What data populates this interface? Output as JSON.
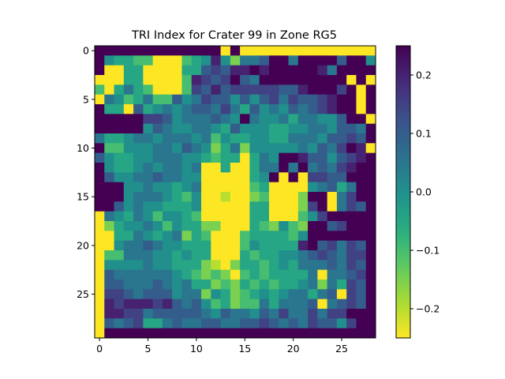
{
  "chart_data": {
    "type": "heatmap",
    "title": "TRI Index for Crater 99 in Zone RG5",
    "xlabel": "",
    "ylabel": "",
    "rows": 30,
    "cols": 29,
    "x_ticks": [
      0,
      5,
      10,
      15,
      20,
      25
    ],
    "y_ticks": [
      0,
      5,
      10,
      15,
      20,
      25
    ],
    "colorbar": {
      "colormap": "viridis",
      "reversed": true,
      "vmin": -0.25,
      "vmax": 0.25,
      "ticks": [
        0.2,
        0.1,
        0.0,
        -0.1,
        -0.2
      ],
      "tick_labels": [
        "0.2",
        "0.1",
        "0.0",
        "−0.1",
        "−0.2"
      ]
    },
    "values": [
      [
        0.25,
        0.25,
        0.25,
        0.25,
        0.25,
        0.25,
        0.25,
        0.25,
        0.25,
        0.25,
        0.25,
        0.25,
        0.25,
        -0.25,
        0.25,
        -0.25,
        -0.25,
        -0.25,
        -0.25,
        -0.25,
        -0.25,
        -0.25,
        -0.25,
        -0.25,
        -0.25,
        -0.25,
        -0.25,
        -0.25,
        -0.25
      ],
      [
        0.25,
        0.0,
        -0.05,
        -0.05,
        -0.1,
        -0.1,
        -0.25,
        -0.25,
        -0.25,
        -0.1,
        -0.05,
        0.0,
        0.2,
        0.0,
        -0.15,
        0.05,
        0.05,
        0.1,
        0.25,
        0.25,
        0.05,
        0.25,
        0.25,
        0.25,
        0.25,
        0.1,
        0.25,
        0.25,
        0.0
      ],
      [
        0.25,
        -0.25,
        -0.25,
        -0.05,
        -0.05,
        -0.25,
        -0.25,
        -0.25,
        -0.25,
        -0.05,
        -0.05,
        0.1,
        0.15,
        0.1,
        0.2,
        0.2,
        0.25,
        0.2,
        0.25,
        0.25,
        0.25,
        0.25,
        0.25,
        0.2,
        0.05,
        0.25,
        0.25,
        0.25,
        0.25
      ],
      [
        -0.25,
        -0.25,
        -0.25,
        -0.05,
        -0.05,
        -0.25,
        -0.25,
        -0.25,
        -0.25,
        -0.1,
        0.2,
        0.15,
        0.1,
        0.15,
        0.25,
        0.1,
        0.05,
        0.25,
        0.25,
        0.25,
        0.25,
        0.25,
        0.25,
        0.25,
        0.25,
        0.25,
        -0.25,
        0.25,
        -0.25
      ],
      [
        -0.1,
        -0.25,
        -0.05,
        0.05,
        -0.05,
        -0.1,
        -0.25,
        -0.25,
        -0.25,
        -0.1,
        0.15,
        0.1,
        0.2,
        0.1,
        0.15,
        0.15,
        0.15,
        0.15,
        0.15,
        0.1,
        0.1,
        0.2,
        0.25,
        0.25,
        0.25,
        0.15,
        0.25,
        -0.25,
        0.25
      ],
      [
        -0.25,
        0.05,
        0.0,
        -0.1,
        -0.05,
        0.05,
        -0.1,
        -0.1,
        0.1,
        0.0,
        0.05,
        0.15,
        0.1,
        0.1,
        0.0,
        0.1,
        0.0,
        0.1,
        0.15,
        0.05,
        0.15,
        0.1,
        0.1,
        0.15,
        0.2,
        0.25,
        0.25,
        -0.25,
        0.25
      ],
      [
        0.25,
        -0.05,
        -0.05,
        -0.25,
        0.1,
        -0.05,
        0.0,
        0.05,
        0.0,
        0.05,
        0.1,
        0.1,
        0.05,
        0.15,
        0.05,
        -0.05,
        0.1,
        0.0,
        0.05,
        0.0,
        0.1,
        0.05,
        0.1,
        0.15,
        0.2,
        0.25,
        0.25,
        -0.25,
        0.25
      ],
      [
        0.25,
        0.25,
        0.25,
        0.25,
        0.25,
        0.15,
        0.15,
        0.1,
        0.0,
        0.05,
        0.05,
        0.05,
        0.1,
        0.05,
        0.0,
        0.25,
        0.05,
        0.0,
        0.0,
        0.05,
        -0.05,
        0.05,
        0.05,
        0.0,
        0.0,
        0.1,
        0.25,
        0.25,
        -0.25
      ],
      [
        0.25,
        0.25,
        0.25,
        0.25,
        0.25,
        0.0,
        0.1,
        0.05,
        0.0,
        0.0,
        0.05,
        0.05,
        0.0,
        -0.05,
        0.1,
        0.0,
        0.0,
        0.0,
        -0.05,
        -0.05,
        0.0,
        0.0,
        0.05,
        0.05,
        0.0,
        0.1,
        0.1,
        0.05,
        0.25
      ],
      [
        0.05,
        -0.05,
        -0.05,
        0.0,
        0.05,
        0.05,
        0.0,
        0.05,
        0.05,
        0.05,
        0.0,
        0.05,
        -0.1,
        0.0,
        -0.05,
        -0.05,
        0.0,
        0.0,
        -0.05,
        -0.05,
        0.05,
        0.05,
        0.05,
        0.0,
        0.1,
        0.1,
        0.15,
        0.1,
        0.25
      ],
      [
        0.25,
        -0.1,
        -0.1,
        0.0,
        0.0,
        0.0,
        0.05,
        0.05,
        0.0,
        0.1,
        0.05,
        0.0,
        -0.15,
        -0.05,
        0.05,
        -0.15,
        0.0,
        0.0,
        0.0,
        0.0,
        0.0,
        0.05,
        0.0,
        0.1,
        0.05,
        0.15,
        0.25,
        0.2,
        -0.25
      ],
      [
        0.1,
        0.0,
        -0.05,
        -0.05,
        0.0,
        0.0,
        0.05,
        0.05,
        0.05,
        0.0,
        0.0,
        -0.05,
        -0.1,
        -0.05,
        -0.05,
        -0.25,
        -0.05,
        0.05,
        0.0,
        0.25,
        0.25,
        0.2,
        0.1,
        0.1,
        0.0,
        0.1,
        0.15,
        0.2,
        0.25
      ],
      [
        0.25,
        0.0,
        -0.05,
        -0.05,
        0.0,
        0.05,
        0.0,
        0.05,
        0.05,
        0.0,
        0.05,
        -0.25,
        -0.25,
        -0.05,
        -0.25,
        -0.25,
        -0.05,
        0.05,
        0.05,
        0.25,
        0.05,
        0.25,
        0.05,
        0.1,
        0.05,
        0.15,
        0.2,
        0.25,
        0.25
      ],
      [
        0.25,
        0.1,
        0.0,
        0.0,
        0.05,
        0.05,
        0.1,
        0.05,
        0.05,
        0.0,
        0.0,
        -0.25,
        -0.25,
        -0.25,
        -0.25,
        -0.25,
        -0.05,
        0.0,
        0.25,
        -0.25,
        0.25,
        -0.25,
        0.15,
        0.15,
        0.1,
        0.1,
        0.25,
        0.25,
        0.25
      ],
      [
        0.25,
        0.25,
        0.25,
        0.0,
        0.0,
        0.05,
        0.0,
        0.0,
        -0.05,
        0.0,
        0.05,
        -0.25,
        -0.25,
        -0.25,
        -0.25,
        -0.25,
        -0.1,
        -0.05,
        -0.25,
        -0.25,
        -0.25,
        -0.25,
        0.0,
        0.05,
        0.1,
        -0.05,
        0.05,
        0.25,
        0.25
      ],
      [
        0.25,
        0.25,
        0.25,
        0.0,
        0.05,
        0.05,
        0.05,
        0.0,
        -0.05,
        -0.1,
        0.0,
        -0.25,
        -0.25,
        -0.2,
        -0.25,
        -0.25,
        -0.15,
        -0.1,
        -0.25,
        -0.25,
        -0.25,
        -0.15,
        0.25,
        0.25,
        -0.25,
        0.05,
        0.15,
        0.25,
        0.25
      ],
      [
        0.25,
        0.25,
        0.1,
        0.0,
        0.05,
        0.0,
        0.0,
        -0.05,
        -0.05,
        -0.05,
        0.0,
        -0.25,
        -0.25,
        -0.25,
        -0.25,
        -0.25,
        -0.05,
        -0.05,
        -0.25,
        -0.25,
        -0.25,
        -0.15,
        0.15,
        0.25,
        -0.25,
        0.05,
        0.15,
        0.1,
        0.25
      ],
      [
        -0.25,
        0.05,
        0.0,
        -0.05,
        0.05,
        0.0,
        -0.1,
        0.0,
        0.0,
        -0.05,
        -0.1,
        -0.25,
        -0.25,
        -0.25,
        -0.25,
        -0.25,
        -0.05,
        -0.05,
        -0.25,
        -0.25,
        -0.25,
        -0.1,
        0.0,
        0.15,
        0.25,
        0.25,
        0.25,
        0.25,
        0.25
      ],
      [
        -0.25,
        -0.15,
        -0.05,
        0.0,
        0.0,
        0.05,
        0.0,
        -0.1,
        0.0,
        -0.05,
        -0.05,
        -0.15,
        -0.15,
        -0.25,
        -0.25,
        -0.25,
        -0.05,
        -0.1,
        -0.15,
        0.0,
        -0.1,
        -0.15,
        0.25,
        0.25,
        0.1,
        0.15,
        0.25,
        0.25,
        0.25
      ],
      [
        -0.25,
        -0.25,
        -0.05,
        -0.05,
        0.05,
        0.0,
        -0.05,
        0.0,
        0.05,
        -0.15,
        -0.05,
        -0.1,
        -0.25,
        -0.25,
        -0.25,
        -0.1,
        -0.05,
        -0.05,
        -0.05,
        -0.05,
        -0.1,
        0.0,
        0.25,
        0.25,
        0.25,
        0.25,
        0.25,
        0.25,
        0.25
      ],
      [
        -0.25,
        -0.25,
        0.0,
        0.05,
        0.05,
        0.1,
        0.05,
        0.0,
        0.0,
        -0.05,
        -0.05,
        -0.05,
        -0.25,
        -0.25,
        -0.25,
        -0.1,
        0.0,
        -0.05,
        -0.05,
        -0.05,
        -0.05,
        0.2,
        0.25,
        0.1,
        0.15,
        0.05,
        0.15,
        0.1,
        0.25
      ],
      [
        -0.25,
        -0.1,
        -0.1,
        0.05,
        0.05,
        0.05,
        0.0,
        0.0,
        -0.05,
        0.0,
        -0.05,
        -0.05,
        -0.25,
        -0.25,
        -0.25,
        -0.05,
        -0.1,
        -0.05,
        -0.05,
        0.0,
        0.0,
        0.05,
        0.1,
        0.15,
        0.1,
        0.05,
        0.15,
        0.15,
        0.25
      ],
      [
        -0.25,
        0.0,
        0.0,
        0.0,
        0.0,
        0.05,
        0.0,
        0.0,
        -0.05,
        -0.05,
        -0.05,
        -0.15,
        -0.2,
        -0.25,
        -0.15,
        -0.05,
        -0.05,
        -0.1,
        -0.05,
        0.0,
        -0.05,
        0.05,
        0.05,
        0.05,
        0.1,
        0.05,
        0.15,
        0.1,
        0.25
      ],
      [
        -0.25,
        0.1,
        0.05,
        0.05,
        0.05,
        0.05,
        0.05,
        0.05,
        0.0,
        -0.05,
        -0.1,
        -0.15,
        -0.1,
        -0.15,
        -0.25,
        -0.1,
        -0.05,
        -0.1,
        -0.05,
        -0.05,
        -0.05,
        -0.05,
        0.05,
        -0.25,
        0.05,
        0.05,
        0.1,
        0.15,
        0.25
      ],
      [
        -0.25,
        0.1,
        0.1,
        0.05,
        0.05,
        0.05,
        0.1,
        0.05,
        0.0,
        0.05,
        -0.05,
        -0.05,
        -0.15,
        -0.1,
        -0.15,
        -0.05,
        -0.1,
        -0.05,
        -0.1,
        -0.05,
        -0.05,
        0.0,
        0.05,
        -0.15,
        0.05,
        -0.05,
        0.15,
        0.1,
        0.25
      ],
      [
        -0.25,
        0.15,
        0.15,
        0.1,
        0.05,
        0.1,
        0.1,
        0.1,
        0.0,
        0.05,
        0.05,
        -0.15,
        0.0,
        -0.05,
        -0.15,
        -0.1,
        -0.05,
        0.0,
        -0.05,
        0.0,
        0.05,
        0.05,
        -0.05,
        0.05,
        0.1,
        -0.25,
        0.15,
        0.1,
        0.25
      ],
      [
        -0.25,
        0.2,
        0.15,
        0.2,
        0.2,
        0.2,
        0.15,
        0.2,
        0.1,
        0.05,
        0.1,
        0.0,
        -0.1,
        -0.05,
        -0.15,
        -0.1,
        -0.1,
        0.05,
        -0.05,
        0.05,
        0.05,
        0.05,
        0.1,
        -0.25,
        0.05,
        0.1,
        0.15,
        0.1,
        0.25
      ],
      [
        -0.25,
        0.2,
        0.2,
        0.15,
        0.15,
        0.05,
        0.1,
        0.1,
        0.1,
        0.1,
        0.1,
        0.05,
        0.0,
        0.1,
        0.05,
        0.05,
        0.0,
        0.1,
        0.05,
        0.15,
        0.05,
        0.05,
        0.15,
        0.05,
        0.15,
        0.15,
        0.25,
        0.25,
        0.25
      ],
      [
        -0.25,
        0.1,
        0.05,
        0.1,
        0.15,
        -0.05,
        -0.05,
        0.05,
        0.1,
        0.05,
        0.05,
        0.1,
        0.1,
        0.05,
        0.05,
        0.1,
        0.1,
        0.15,
        0.1,
        0.05,
        0.1,
        0.05,
        0.15,
        0.1,
        0.1,
        0.0,
        0.15,
        0.25,
        0.25
      ],
      [
        -0.25,
        0.25,
        0.25,
        0.25,
        0.25,
        0.25,
        0.25,
        0.25,
        0.25,
        0.25,
        0.25,
        0.25,
        0.25,
        0.25,
        0.25,
        0.25,
        0.25,
        0.25,
        0.25,
        0.25,
        0.25,
        0.25,
        0.25,
        0.25,
        0.25,
        0.25,
        0.25,
        0.25,
        0.25
      ]
    ]
  }
}
